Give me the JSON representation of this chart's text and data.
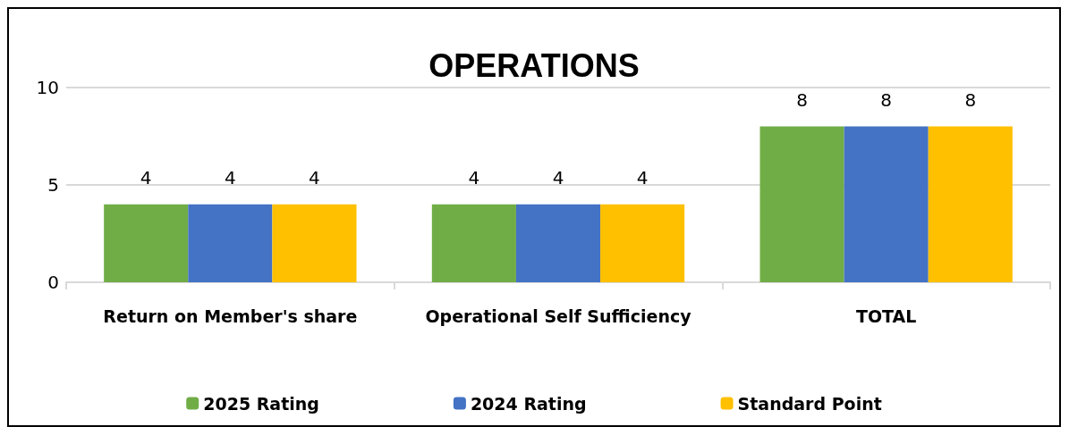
{
  "chart_data": {
    "type": "bar",
    "title": "OPERATIONS",
    "categories": [
      "Return on Member's share",
      "Operational Self Sufficiency",
      "TOTAL"
    ],
    "series": [
      {
        "name": "2025 Rating",
        "color": "#70ad47",
        "values": [
          4,
          4,
          8
        ]
      },
      {
        "name": "2024 Rating",
        "color": "#4472c4",
        "values": [
          4,
          4,
          8
        ]
      },
      {
        "name": "Standard Point",
        "color": "#ffc000",
        "values": [
          4,
          4,
          8
        ]
      }
    ],
    "ylim": [
      0,
      10
    ],
    "yticks": [
      0,
      5,
      10
    ],
    "grid": "y",
    "legend": "bottom",
    "data_labels": true
  }
}
